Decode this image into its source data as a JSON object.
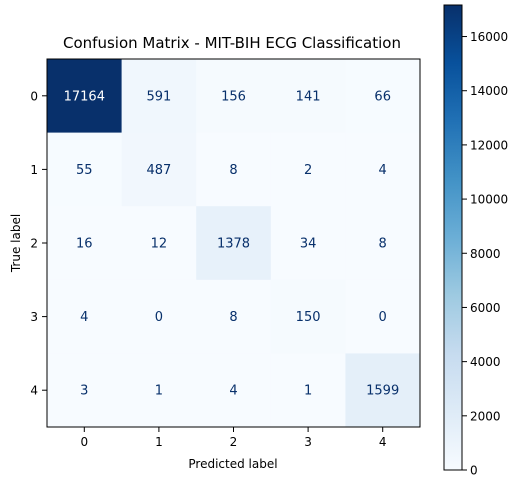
{
  "chart_data": {
    "type": "heatmap",
    "title": "Confusion Matrix - MIT-BIH ECG Classification",
    "xlabel": "Predicted label",
    "ylabel": "True label",
    "x_categories": [
      "0",
      "1",
      "2",
      "3",
      "4"
    ],
    "y_categories": [
      "0",
      "1",
      "2",
      "3",
      "4"
    ],
    "matrix": [
      [
        17164,
        591,
        156,
        141,
        66
      ],
      [
        55,
        487,
        8,
        2,
        4
      ],
      [
        16,
        12,
        1378,
        34,
        8
      ],
      [
        4,
        0,
        8,
        150,
        0
      ],
      [
        3,
        1,
        4,
        1,
        1599
      ]
    ],
    "colormap": "Blues",
    "colorbar": {
      "min": 0,
      "max": 17164,
      "ticks": [
        0,
        2000,
        4000,
        6000,
        8000,
        10000,
        12000,
        14000,
        16000
      ]
    },
    "colors": {
      "low": "#f7fbff",
      "high": "#08306b",
      "text_dark_cell": "#ffffff",
      "text_light_cell": "#08306b"
    }
  }
}
